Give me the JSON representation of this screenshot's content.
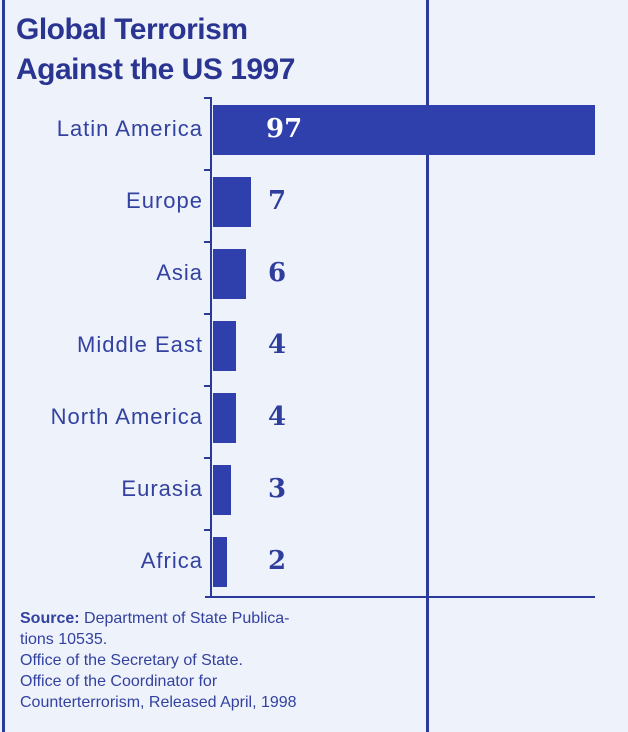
{
  "chart_data": {
    "type": "bar",
    "orientation": "horizontal",
    "title_line1": "Global Terrorism",
    "title_line2": "Against the US 1997",
    "categories": [
      "Latin America",
      "Europe",
      "Asia",
      "Middle East",
      "North America",
      "Eurasia",
      "Africa"
    ],
    "values": [
      97,
      7,
      6,
      4,
      4,
      3,
      2
    ],
    "value_labels": [
      "97",
      "7",
      "6",
      "4",
      "4",
      "3",
      "2"
    ],
    "axis_break": true,
    "bar_color": "#2f3fac",
    "xlabel": "",
    "ylabel": ""
  },
  "source": {
    "label": "Source:",
    "lines": [
      "Department of State Publica-",
      "tions 10535.",
      "Office of the Secretary of State.",
      "Office of the Coordinator for",
      "Counterterrorism, Released April, 1998"
    ]
  }
}
